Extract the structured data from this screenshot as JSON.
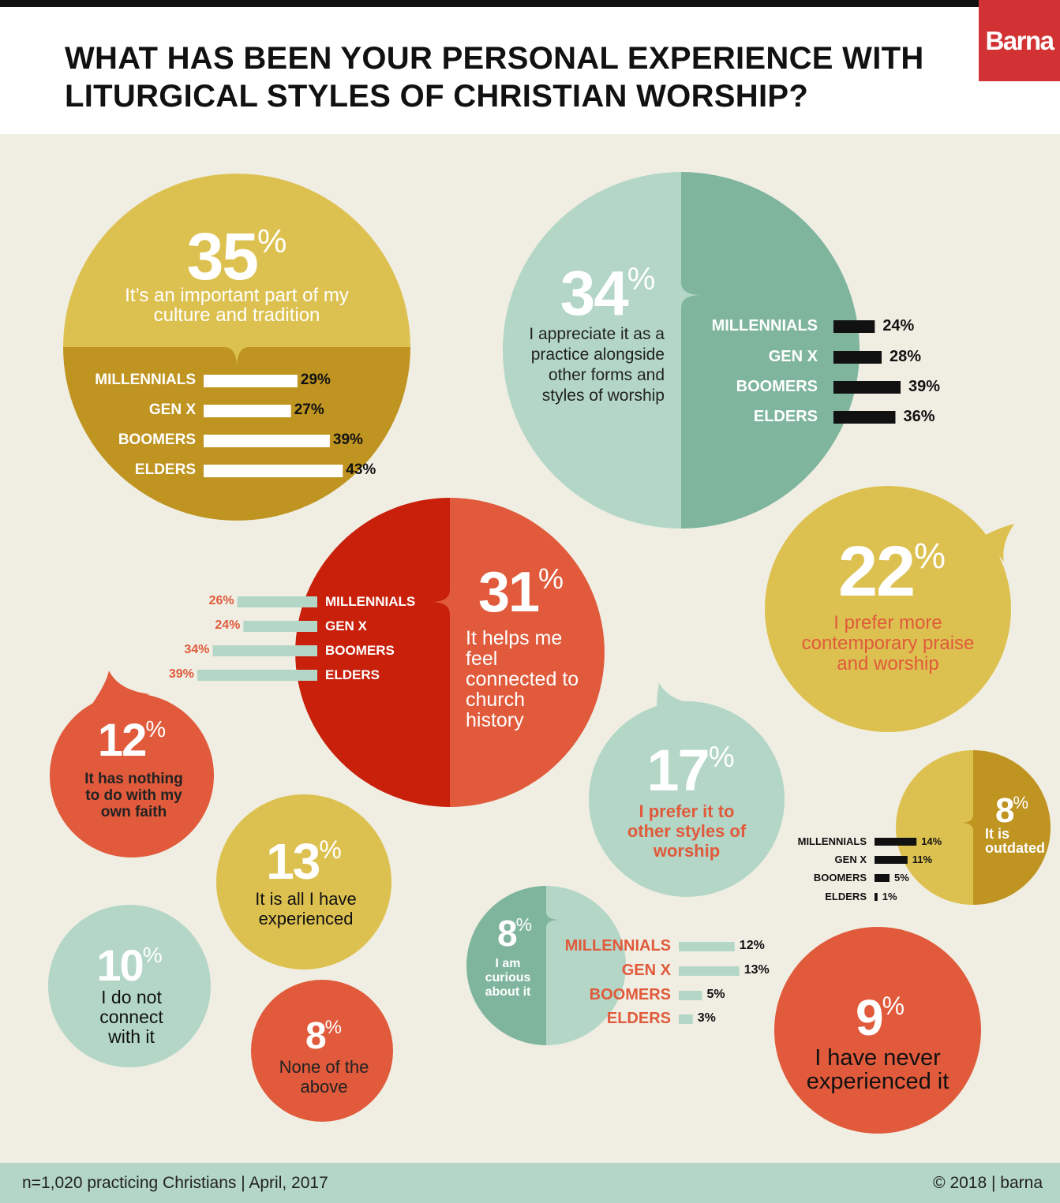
{
  "title": "WHAT HAS BEEN YOUR PERSONAL EXPERIENCE WITH LITURGICAL STYLES OF CHRISTIAN WORSHIP?",
  "logo": "Barna",
  "footer": {
    "sample": "n=1,020 practicing Christians | April, 2017",
    "copyright": "© 2018 | barna"
  },
  "colors": {
    "gold": "#ddc150",
    "gold_dark": "#bf9420",
    "teal": "#b3d6c7",
    "teal_dark": "#7fb59d",
    "red": "#c9200b",
    "orange": "#e05a3b",
    "background": "#f0eee3"
  },
  "chart_data": {
    "type": "bubble-infographic",
    "categories": [
      "MILLENNIALS",
      "GEN X",
      "BOOMERS",
      "ELDERS"
    ],
    "items": [
      {
        "value": 35,
        "value_label": "35",
        "label": "It’s an important part of my culture and tradition",
        "breakdown": [
          29,
          27,
          39,
          43
        ],
        "breakdown_labels": [
          "29%",
          "27%",
          "39%",
          "43%"
        ]
      },
      {
        "value": 34,
        "value_label": "34",
        "label": "I appreciate it as a practice alongside other forms and styles of worship",
        "breakdown": [
          24,
          28,
          39,
          36
        ],
        "breakdown_labels": [
          "24%",
          "28%",
          "39%",
          "36%"
        ]
      },
      {
        "value": 31,
        "value_label": "31",
        "label": "It helps me feel connected to church history",
        "breakdown": [
          26,
          24,
          34,
          39
        ],
        "breakdown_labels": [
          "26%",
          "24%",
          "34%",
          "39%"
        ]
      },
      {
        "value": 22,
        "value_label": "22",
        "label": "I prefer more contemporary praise and worship"
      },
      {
        "value": 17,
        "value_label": "17",
        "label": "I prefer it to other styles of worship"
      },
      {
        "value": 13,
        "value_label": "13",
        "label": "It is all I have experienced"
      },
      {
        "value": 12,
        "value_label": "12",
        "label": "It has nothing to do with my own faith"
      },
      {
        "value": 10,
        "value_label": "10",
        "label": "I do not connect with it"
      },
      {
        "value": 9,
        "value_label": "9",
        "label": "I have never experienced it"
      },
      {
        "value": 8,
        "value_label": "8",
        "label": "It is outdated",
        "breakdown": [
          14,
          11,
          5,
          1
        ],
        "breakdown_labels": [
          "14%",
          "11%",
          "5%",
          "1%"
        ]
      },
      {
        "value": 8,
        "value_label": "8",
        "label": "I am curious about it",
        "breakdown": [
          12,
          13,
          5,
          3
        ],
        "breakdown_labels": [
          "12%",
          "13%",
          "5%",
          "3%"
        ]
      },
      {
        "value": 8,
        "value_label": "8",
        "label": "None of the above"
      }
    ]
  }
}
